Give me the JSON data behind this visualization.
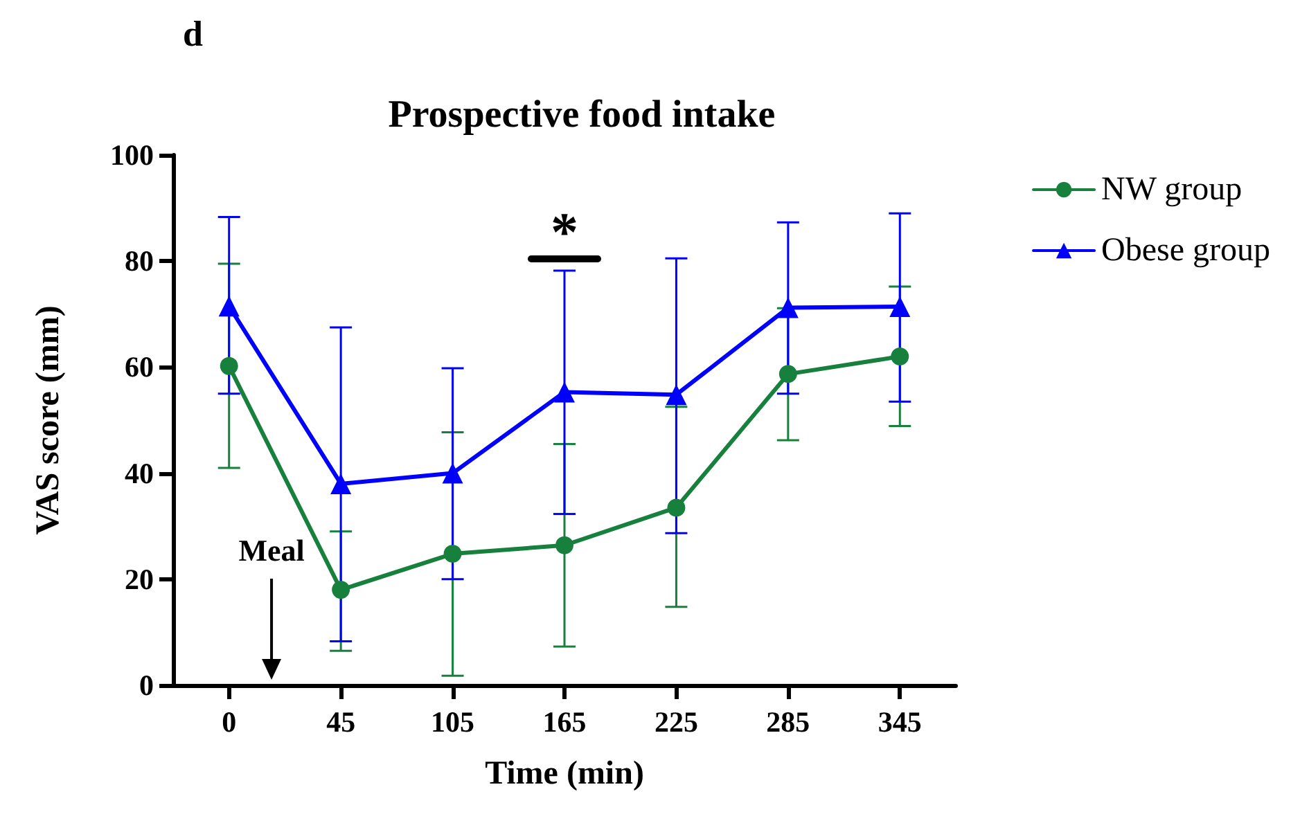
{
  "chart_data": {
    "type": "line",
    "title": "Prospective food intake",
    "xlabel": "Time (min)",
    "ylabel": "VAS score (mm)",
    "categories": [
      "0",
      "45",
      "105",
      "165",
      "225",
      "285",
      "345"
    ],
    "series": [
      {
        "name": "NW group",
        "color": "#17803d",
        "marker": "circle",
        "values": [
          60.2,
          18,
          24.8,
          26.4,
          33.5,
          58.7,
          62
        ],
        "errors": [
          [
            41,
            79.5
          ],
          [
            6.5,
            29
          ],
          [
            1.8,
            47.7
          ],
          [
            7.3,
            45.5
          ],
          [
            14.8,
            52.5
          ],
          [
            46.2,
            71.1
          ],
          [
            48.9,
            75.2
          ]
        ]
      },
      {
        "name": "Obese group",
        "color": "#0000ff",
        "marker": "triangle",
        "values": [
          71.5,
          38,
          40,
          55.3,
          54.8,
          71.2,
          71.4
        ],
        "errors": [
          [
            55,
            88.3
          ],
          [
            8.3,
            67.5
          ],
          [
            20,
            59.8
          ],
          [
            32.3,
            78.2
          ],
          [
            28.7,
            80.5
          ],
          [
            55,
            87.3
          ],
          [
            53.5,
            89
          ]
        ]
      }
    ],
    "ylim": [
      0,
      100
    ],
    "yticks": [
      0,
      20,
      40,
      60,
      80,
      100
    ],
    "grid": false,
    "legend": "top right",
    "line_style": "solid",
    "annotations": [
      "d",
      "Meal",
      "*"
    ]
  }
}
